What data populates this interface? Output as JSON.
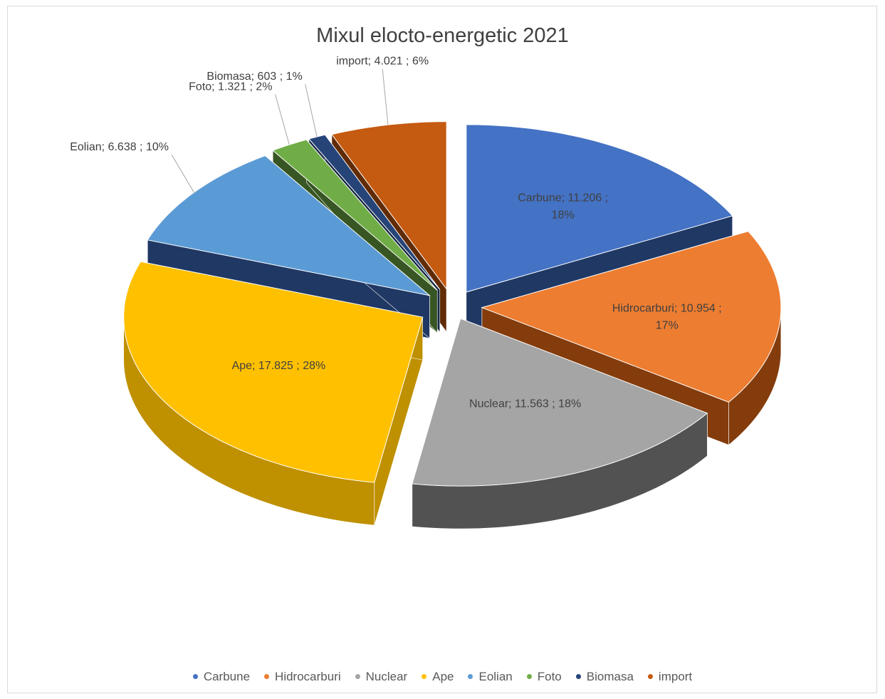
{
  "chart_data": {
    "type": "pie",
    "title": "Mixul elocto-energetic 2021",
    "legend_position": "bottom",
    "slices": [
      {
        "name": "Carbune",
        "value": 11206,
        "value_label": "11.206",
        "percent": "18%",
        "color": "#4472c4",
        "side_color": "#1f3864"
      },
      {
        "name": "Hidrocarburi",
        "value": 10954,
        "value_label": "10.954",
        "percent": "17%",
        "color": "#ed7d31",
        "side_color": "#843c0c"
      },
      {
        "name": "Nuclear",
        "value": 11563,
        "value_label": "11.563",
        "percent": "18%",
        "color": "#a5a5a5",
        "side_color": "#525252"
      },
      {
        "name": "Ape",
        "value": 17825,
        "value_label": "17.825",
        "percent": "28%",
        "color": "#ffc000",
        "side_color": "#bf9000"
      },
      {
        "name": "Eolian",
        "value": 6638,
        "value_label": "6.638",
        "percent": "10%",
        "color": "#5b9bd5",
        "side_color": "#203864"
      },
      {
        "name": "Foto",
        "value": 1321,
        "value_label": "1.321",
        "percent": "2%",
        "color": "#70ad47",
        "side_color": "#375623"
      },
      {
        "name": "Biomasa",
        "value": 603,
        "value_label": "603",
        "percent": "1%",
        "color": "#264478",
        "side_color": "#142542"
      },
      {
        "name": "import",
        "value": 4021,
        "value_label": "4.021",
        "percent": "6%",
        "color": "#c55a11",
        "side_color": "#612b06"
      }
    ],
    "data_labels": [
      {
        "line1": "Carbune;  11.206 ;",
        "line2": "18%"
      },
      {
        "line1": "Hidrocarburi;  10.954 ;",
        "line2": "17%"
      },
      {
        "line1": "Nuclear;  11.563 ; 18%",
        "line2": ""
      },
      {
        "line1": "Ape;  17.825 ; 28%",
        "line2": ""
      },
      {
        "line1": "Eolian;  6.638 ; 10%",
        "line2": ""
      },
      {
        "line1": "Foto;  1.321 ; 2%",
        "line2": ""
      },
      {
        "line1": "Biomasa;  603 ; 1%",
        "line2": ""
      },
      {
        "line1": "import;  4.021 ; 6%",
        "line2": ""
      }
    ]
  }
}
